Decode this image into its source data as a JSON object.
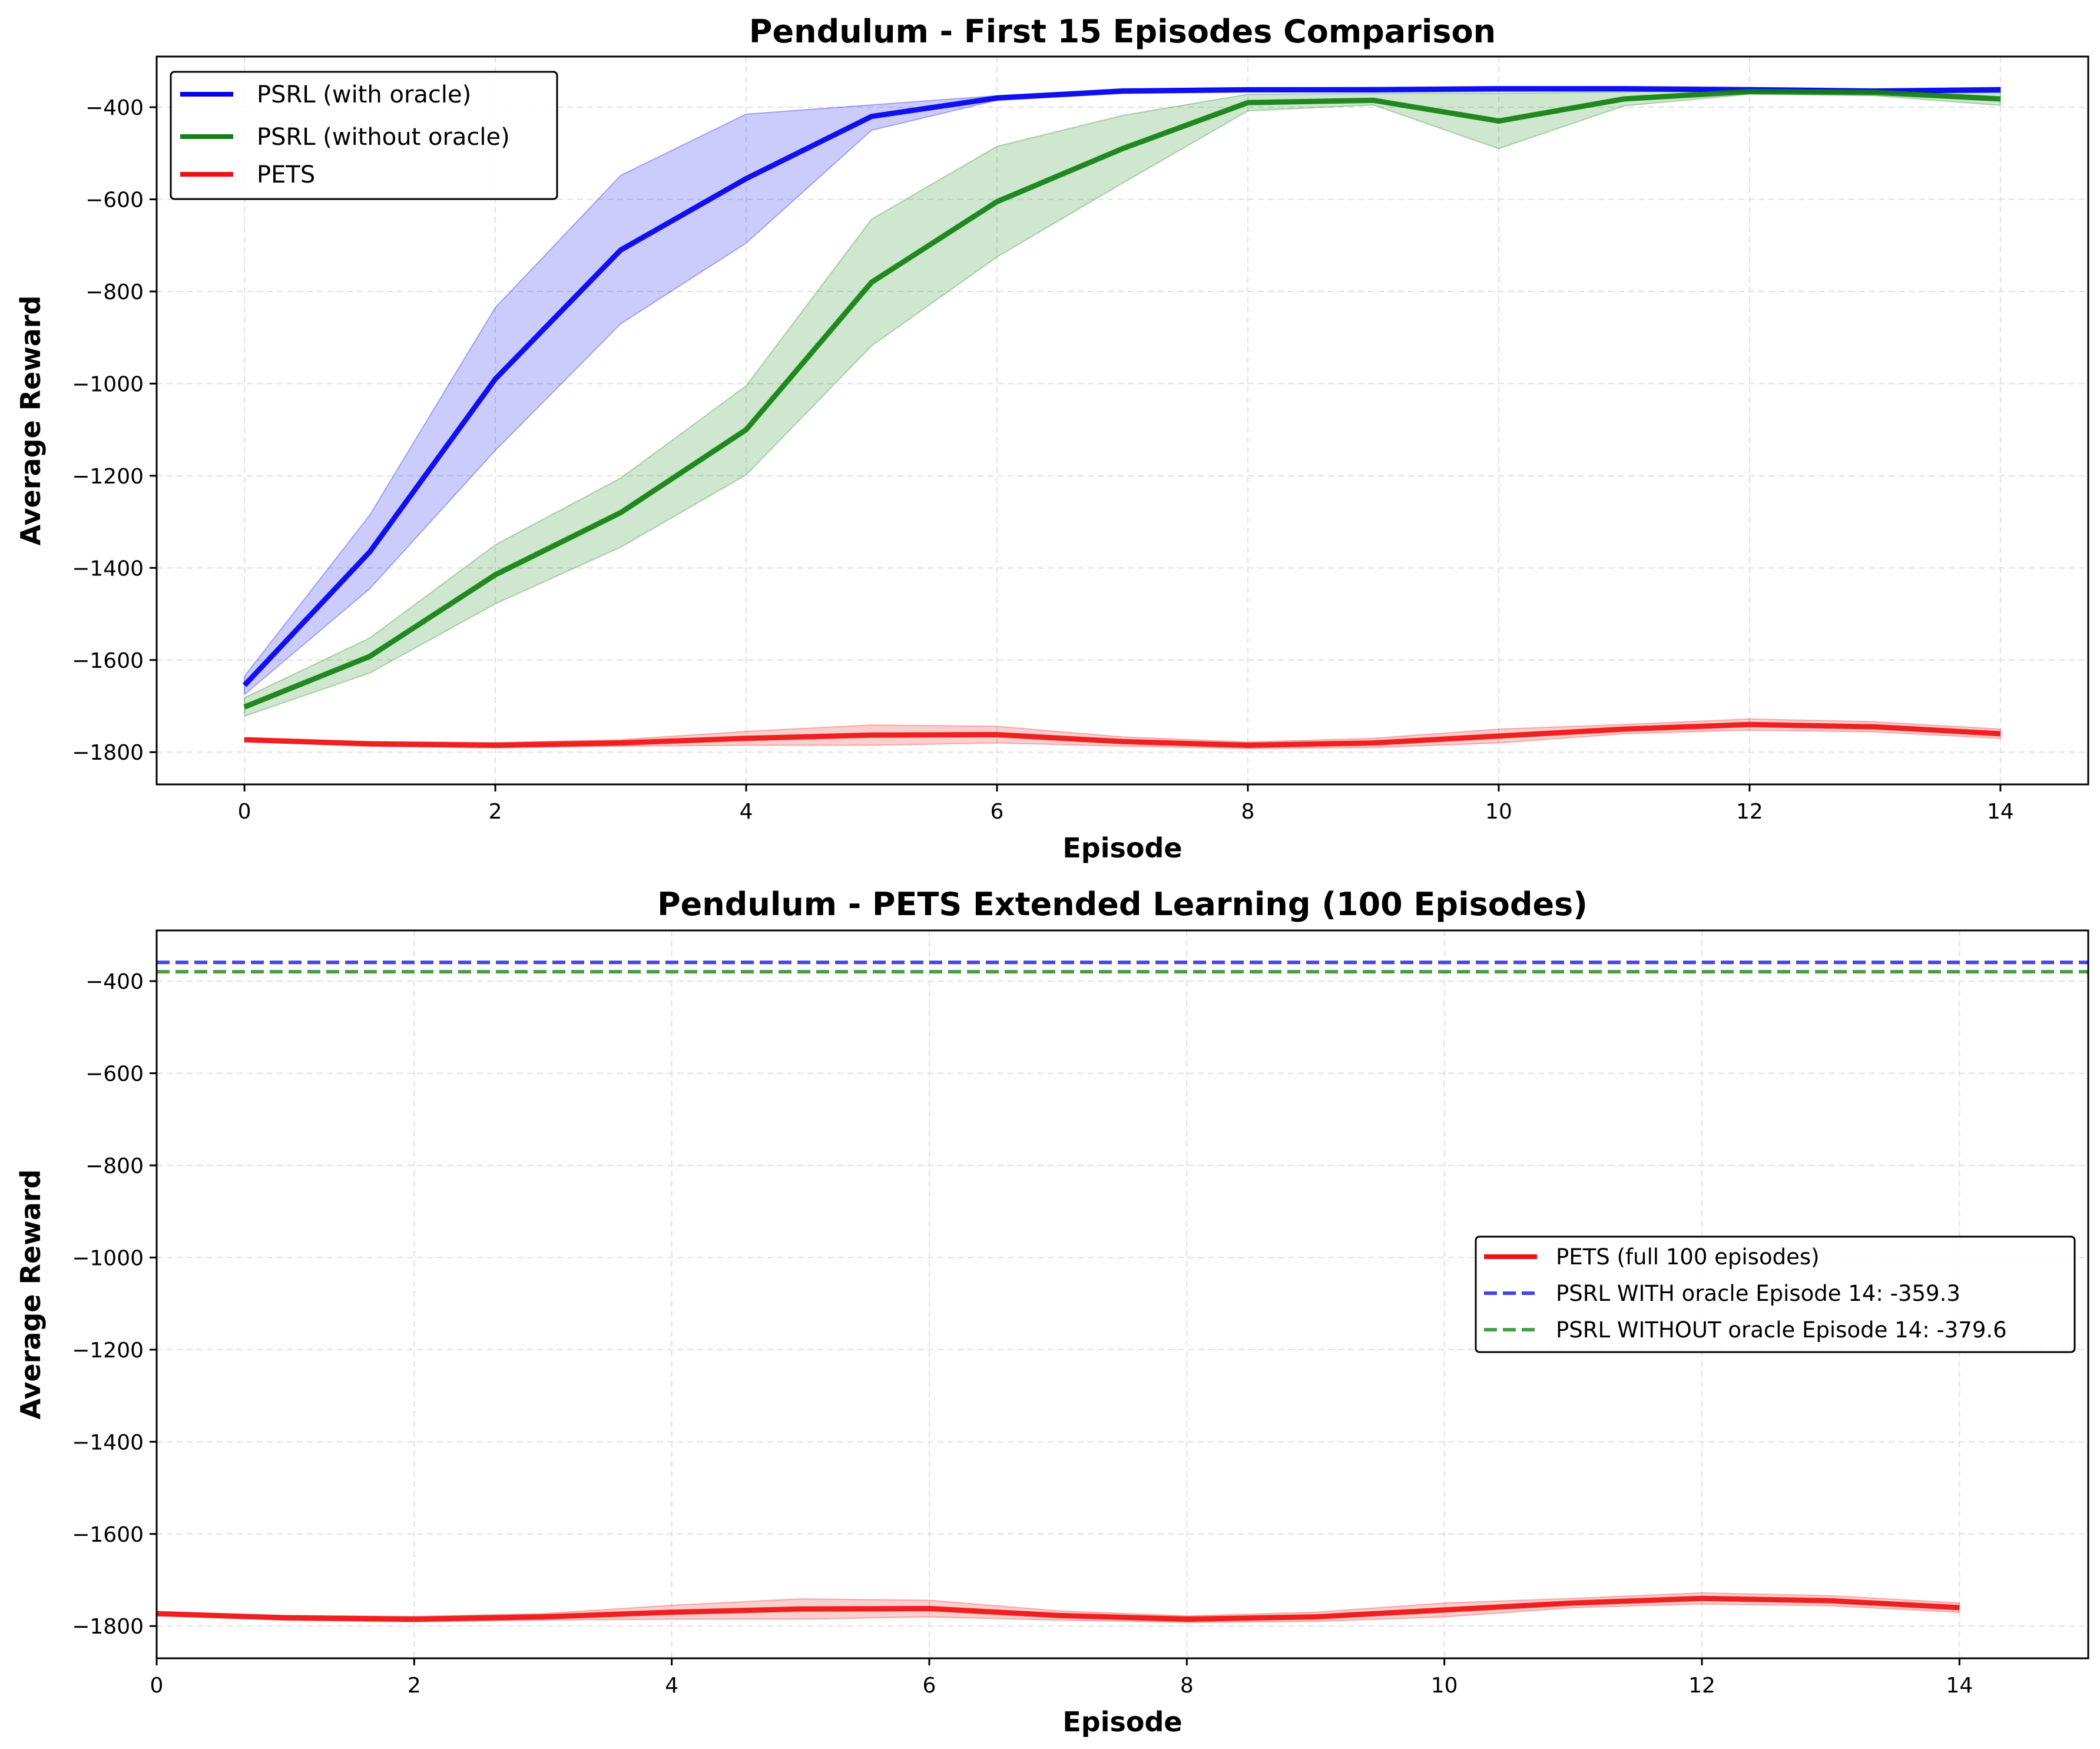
{
  "chart_data": [
    {
      "type": "line",
      "title": "Pendulum - First 15 Episodes Comparison",
      "xlabel": "Episode",
      "ylabel": "Average Reward",
      "xlim": [
        -0.7,
        14.7
      ],
      "ylim": [
        -1870,
        -290
      ],
      "xticks": [
        0,
        2,
        4,
        6,
        8,
        10,
        12,
        14
      ],
      "yticks": [
        -1800,
        -1600,
        -1400,
        -1200,
        -1000,
        -800,
        -600,
        -400
      ],
      "grid": true,
      "legend_position": "upper-left",
      "x": [
        0,
        1,
        2,
        3,
        4,
        5,
        6,
        7,
        8,
        9,
        10,
        11,
        12,
        13,
        14
      ],
      "series": [
        {
          "name": "PSRL (with oracle)",
          "color": "#0000ee",
          "values": [
            -1655,
            -1365,
            -990,
            -710,
            -555,
            -420,
            -380,
            -365,
            -362,
            -362,
            -360,
            -360,
            -362,
            -365,
            -362
          ],
          "lower": [
            -1675,
            -1445,
            -1145,
            -870,
            -695,
            -450,
            -385,
            -370,
            -367,
            -367,
            -366,
            -365,
            -368,
            -370,
            -368
          ],
          "upper": [
            -1635,
            -1285,
            -835,
            -548,
            -415,
            -395,
            -375,
            -360,
            -358,
            -357,
            -355,
            -355,
            -357,
            -360,
            -357
          ]
        },
        {
          "name": "PSRL (without oracle)",
          "color": "#108010",
          "values": [
            -1702,
            -1592,
            -1415,
            -1280,
            -1100,
            -780,
            -605,
            -490,
            -390,
            -385,
            -430,
            -382,
            -366,
            -368,
            -382
          ],
          "lower": [
            -1722,
            -1628,
            -1478,
            -1355,
            -1198,
            -918,
            -725,
            -565,
            -408,
            -395,
            -490,
            -397,
            -372,
            -375,
            -396
          ],
          "upper": [
            -1682,
            -1552,
            -1350,
            -1205,
            -1005,
            -643,
            -485,
            -418,
            -372,
            -370,
            -370,
            -367,
            -360,
            -362,
            -368
          ]
        },
        {
          "name": "PETS",
          "color": "#ee1111",
          "values": [
            -1773,
            -1782,
            -1785,
            -1780,
            -1770,
            -1763,
            -1762,
            -1777,
            -1785,
            -1780,
            -1765,
            -1750,
            -1740,
            -1745,
            -1760
          ],
          "lower": [
            -1777,
            -1787,
            -1791,
            -1787,
            -1785,
            -1785,
            -1780,
            -1787,
            -1792,
            -1790,
            -1780,
            -1760,
            -1752,
            -1756,
            -1770
          ],
          "upper": [
            -1769,
            -1777,
            -1779,
            -1773,
            -1755,
            -1741,
            -1744,
            -1767,
            -1778,
            -1770,
            -1750,
            -1740,
            -1728,
            -1734,
            -1750
          ]
        }
      ]
    },
    {
      "type": "line",
      "title": "Pendulum - PETS Extended Learning (100 Episodes)",
      "xlabel": "Episode",
      "ylabel": "Average Reward",
      "xlim": [
        0,
        15
      ],
      "ylim": [
        -1870,
        -290
      ],
      "xticks": [
        0,
        2,
        4,
        6,
        8,
        10,
        12,
        14
      ],
      "yticks": [
        -1800,
        -1600,
        -1400,
        -1200,
        -1000,
        -800,
        -600,
        -400
      ],
      "grid": true,
      "legend_position": "center-right",
      "x": [
        0,
        1,
        2,
        3,
        4,
        5,
        6,
        7,
        8,
        9,
        10,
        11,
        12,
        13,
        14
      ],
      "series": [
        {
          "name": "PETS (full 100 episodes)",
          "color": "#ee1111",
          "values": [
            -1773,
            -1782,
            -1785,
            -1780,
            -1770,
            -1763,
            -1762,
            -1777,
            -1785,
            -1780,
            -1765,
            -1750,
            -1740,
            -1745,
            -1760
          ],
          "lower": [
            -1777,
            -1787,
            -1791,
            -1787,
            -1785,
            -1785,
            -1780,
            -1787,
            -1792,
            -1790,
            -1780,
            -1760,
            -1752,
            -1756,
            -1770
          ],
          "upper": [
            -1769,
            -1777,
            -1779,
            -1773,
            -1755,
            -1741,
            -1744,
            -1767,
            -1778,
            -1770,
            -1750,
            -1740,
            -1728,
            -1734,
            -1750
          ]
        }
      ],
      "reference_lines": [
        {
          "name": "PSRL WITH oracle Episode 14: -359.3",
          "value": -359.3,
          "color": "#4444ee"
        },
        {
          "name": "PSRL WITHOUT oracle Episode 14: -379.6",
          "value": -379.6,
          "color": "#44a044"
        }
      ]
    }
  ]
}
